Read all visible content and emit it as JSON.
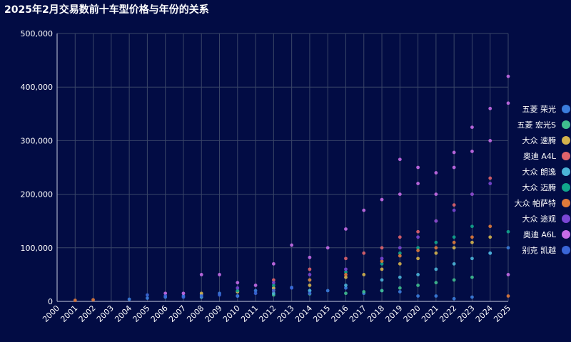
{
  "chart_data": {
    "type": "scatter",
    "title": "2025年2月交易数前十车型价格与年份的关系",
    "xlabel": "",
    "ylabel": "",
    "x_categories": [
      "2000",
      "2001",
      "2002",
      "2003",
      "2004",
      "2005",
      "2006",
      "2007",
      "2008",
      "2009",
      "2010",
      "2011",
      "2012",
      "2013",
      "2014",
      "2015",
      "2016",
      "2017",
      "2018",
      "2019",
      "2020",
      "2021",
      "2022",
      "2023",
      "2024",
      "2025"
    ],
    "ylim": [
      0,
      500000
    ],
    "yticks": [
      "0",
      "100,000",
      "200,000",
      "300,000",
      "400,000",
      "500,000"
    ],
    "grid": true,
    "legend_position": "right",
    "series": [
      {
        "name": "五菱 荣光",
        "color": "#3b7ddd",
        "points": [
          [
            "2004",
            4000
          ],
          [
            "2005",
            6000
          ],
          [
            "2006",
            8000
          ],
          [
            "2007",
            10000
          ],
          [
            "2008",
            12000
          ],
          [
            "2009",
            15000
          ],
          [
            "2010",
            18000
          ],
          [
            "2011",
            20000
          ],
          [
            "2012",
            24000
          ],
          [
            "2013",
            26000
          ],
          [
            "2014",
            20000
          ],
          [
            "2015",
            20000
          ],
          [
            "2016",
            25000
          ],
          [
            "2017",
            15000
          ],
          [
            "2018",
            20000
          ],
          [
            "2019",
            18000
          ],
          [
            "2020",
            10000
          ],
          [
            "2021",
            10000
          ],
          [
            "2022",
            5000
          ],
          [
            "2023",
            8000
          ],
          [
            "2024",
            90000
          ],
          [
            "2025",
            100000
          ]
        ]
      },
      {
        "name": "五菱 宏光S",
        "color": "#3fbf8f",
        "points": [
          [
            "2010",
            10000
          ],
          [
            "2012",
            12000
          ],
          [
            "2014",
            14000
          ],
          [
            "2016",
            15000
          ],
          [
            "2017",
            18000
          ],
          [
            "2018",
            20000
          ],
          [
            "2019",
            25000
          ],
          [
            "2020",
            30000
          ],
          [
            "2021",
            35000
          ],
          [
            "2022",
            40000
          ],
          [
            "2023",
            45000
          ]
        ]
      },
      {
        "name": "大众 速腾",
        "color": "#d4b24c",
        "points": [
          [
            "2008",
            15000
          ],
          [
            "2010",
            18000
          ],
          [
            "2012",
            25000
          ],
          [
            "2014",
            30000
          ],
          [
            "2016",
            45000
          ],
          [
            "2017",
            50000
          ],
          [
            "2018",
            60000
          ],
          [
            "2019",
            70000
          ],
          [
            "2020",
            80000
          ],
          [
            "2021",
            90000
          ],
          [
            "2022",
            100000
          ],
          [
            "2023",
            110000
          ],
          [
            "2024",
            120000
          ]
        ]
      },
      {
        "name": "奥迪 A4L",
        "color": "#e0636b",
        "points": [
          [
            "2012",
            40000
          ],
          [
            "2014",
            60000
          ],
          [
            "2016",
            80000
          ],
          [
            "2017",
            90000
          ],
          [
            "2018",
            100000
          ],
          [
            "2019",
            120000
          ],
          [
            "2020",
            130000
          ],
          [
            "2021",
            150000
          ],
          [
            "2022",
            180000
          ],
          [
            "2023",
            200000
          ],
          [
            "2024",
            230000
          ]
        ]
      },
      {
        "name": "大众 朗逸",
        "color": "#4bb4d8",
        "points": [
          [
            "2008",
            8000
          ],
          [
            "2010",
            10000
          ],
          [
            "2012",
            15000
          ],
          [
            "2014",
            20000
          ],
          [
            "2016",
            30000
          ],
          [
            "2018",
            40000
          ],
          [
            "2019",
            45000
          ],
          [
            "2020",
            50000
          ],
          [
            "2021",
            60000
          ],
          [
            "2022",
            70000
          ],
          [
            "2023",
            80000
          ],
          [
            "2024",
            90000
          ]
        ]
      },
      {
        "name": "大众 迈腾",
        "color": "#11a58c",
        "points": [
          [
            "2010",
            20000
          ],
          [
            "2012",
            30000
          ],
          [
            "2014",
            40000
          ],
          [
            "2016",
            55000
          ],
          [
            "2018",
            70000
          ],
          [
            "2019",
            90000
          ],
          [
            "2020",
            100000
          ],
          [
            "2021",
            110000
          ],
          [
            "2022",
            120000
          ],
          [
            "2023",
            140000
          ],
          [
            "2025",
            130000
          ]
        ]
      },
      {
        "name": "大众 帕萨特",
        "color": "#e07a3a",
        "points": [
          [
            "2001",
            2000
          ],
          [
            "2002",
            3000
          ],
          [
            "2012",
            20000
          ],
          [
            "2014",
            40000
          ],
          [
            "2016",
            50000
          ],
          [
            "2018",
            75000
          ],
          [
            "2019",
            85000
          ],
          [
            "2020",
            95000
          ],
          [
            "2021",
            100000
          ],
          [
            "2022",
            110000
          ],
          [
            "2023",
            120000
          ],
          [
            "2024",
            140000
          ],
          [
            "2025",
            10000
          ]
        ]
      },
      {
        "name": "大众 途观",
        "color": "#7a46d4",
        "points": [
          [
            "2010",
            25000
          ],
          [
            "2012",
            35000
          ],
          [
            "2014",
            50000
          ],
          [
            "2016",
            60000
          ],
          [
            "2018",
            80000
          ],
          [
            "2019",
            100000
          ],
          [
            "2020",
            120000
          ],
          [
            "2021",
            150000
          ],
          [
            "2022",
            170000
          ],
          [
            "2023",
            200000
          ],
          [
            "2024",
            220000
          ]
        ]
      },
      {
        "name": "奥迪 A6L",
        "color": "#c66ce8",
        "points": [
          [
            "2006",
            15000
          ],
          [
            "2007",
            15000
          ],
          [
            "2008",
            50000
          ],
          [
            "2009",
            50000
          ],
          [
            "2010",
            35000
          ],
          [
            "2011",
            30000
          ],
          [
            "2012",
            70000
          ],
          [
            "2013",
            105000
          ],
          [
            "2014",
            82000
          ],
          [
            "2015",
            100000
          ],
          [
            "2016",
            135000
          ],
          [
            "2017",
            170000
          ],
          [
            "2018",
            190000
          ],
          [
            "2019",
            265000
          ],
          [
            "2020",
            250000
          ],
          [
            "2021",
            240000
          ],
          [
            "2022",
            278000
          ],
          [
            "2023",
            325000
          ],
          [
            "2024",
            360000
          ],
          [
            "2025",
            420000
          ],
          [
            "2025",
            370000
          ],
          [
            "2025",
            50000
          ],
          [
            "2024",
            300000
          ],
          [
            "2023",
            280000
          ],
          [
            "2022",
            250000
          ],
          [
            "2021",
            200000
          ],
          [
            "2020",
            220000
          ],
          [
            "2019",
            200000
          ]
        ]
      },
      {
        "name": "别克 凯越",
        "color": "#3a66d8",
        "points": [
          [
            "2005",
            12000
          ],
          [
            "2006",
            10000
          ],
          [
            "2007",
            8000
          ],
          [
            "2008",
            10000
          ],
          [
            "2009",
            12000
          ],
          [
            "2010",
            10000
          ],
          [
            "2011",
            15000
          ],
          [
            "2012",
            20000
          ],
          [
            "2013",
            25000
          ],
          [
            "2014",
            15000
          ]
        ]
      }
    ]
  }
}
